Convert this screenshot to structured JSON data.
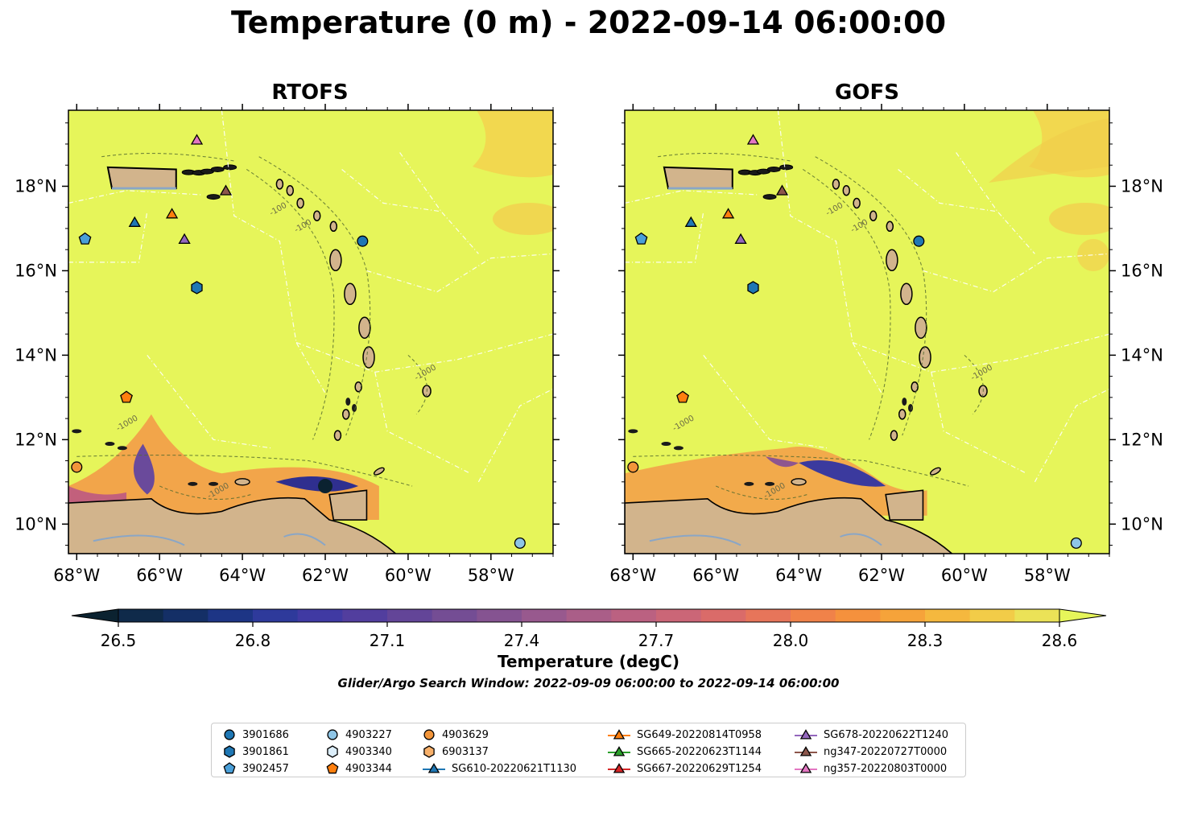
{
  "title": "Temperature (0 m) - 2022-09-14 06:00:00",
  "panels": [
    {
      "title": "RTOFS",
      "y_labels_side": "left"
    },
    {
      "title": "GOFS",
      "y_labels_side": "right"
    }
  ],
  "map": {
    "lon_range": [
      -68.2,
      -56.5
    ],
    "lat_range": [
      9.3,
      19.8
    ],
    "x_ticks": [
      "68°W",
      "66°W",
      "64°W",
      "62°W",
      "60°W",
      "58°W"
    ],
    "x_tick_values": [
      -68,
      -66,
      -64,
      -62,
      -60,
      -58
    ],
    "y_ticks": [
      "18°N",
      "16°N",
      "14°N",
      "12°N",
      "10°N"
    ],
    "y_tick_values": [
      18,
      16,
      14,
      12,
      10
    ],
    "contour_labels": [
      "-100",
      "-1000"
    ],
    "colors": {
      "ocean": "#e6f55a",
      "land": "#d2b48c",
      "warm": "#f5b53a",
      "cool": "#3f3ba0"
    }
  },
  "colorbar": {
    "label": "Temperature (degC)",
    "ticks": [
      "26.5",
      "26.8",
      "27.1",
      "27.4",
      "27.7",
      "28.0",
      "28.3",
      "28.6"
    ],
    "range": [
      26.5,
      28.6
    ],
    "extend": "both",
    "colors": [
      "#0b2230",
      "#0f2a4a",
      "#142f66",
      "#1d3585",
      "#2e3a9b",
      "#403aa3",
      "#523e9e",
      "#634598",
      "#744d94",
      "#855391",
      "#98598e",
      "#aa5e88",
      "#bb6181",
      "#cb6677",
      "#da6b69",
      "#e7755a",
      "#f08249",
      "#f5913d",
      "#f6a33a",
      "#f5b83e",
      "#f2cc48",
      "#ebe257",
      "#e6f55a"
    ]
  },
  "search_window": "Glider/Argo Search Window: 2022-09-09 06:00:00 to 2022-09-14 06:00:00",
  "markers": [
    {
      "shape": "circle",
      "color": "#1f77b4",
      "lon": -61.1,
      "lat": 16.7
    },
    {
      "shape": "hexagon",
      "color": "#1f77b4",
      "lon": -65.1,
      "lat": 15.6
    },
    {
      "shape": "pentagon",
      "color": "#4a9fd8",
      "lon": -67.8,
      "lat": 16.75
    },
    {
      "shape": "circle",
      "color": "#8ec5e6",
      "lon": -57.3,
      "lat": 9.55
    },
    {
      "shape": "pentagon",
      "color": "#ff7f0e",
      "lon": -66.8,
      "lat": 13.0
    },
    {
      "shape": "circle",
      "color": "#f2953a",
      "lon": -68.0,
      "lat": 11.35
    },
    {
      "shape": "triangle",
      "color": "#1f77b4",
      "lon": -66.6,
      "lat": 17.15
    },
    {
      "shape": "triangle",
      "color": "#ff7f0e",
      "lon": -65.7,
      "lat": 17.35
    },
    {
      "shape": "triangle",
      "color": "#9467bd",
      "lon": -65.4,
      "lat": 16.75
    },
    {
      "shape": "triangle",
      "color": "#8c564b",
      "lon": -64.4,
      "lat": 17.9
    },
    {
      "shape": "triangle",
      "color": "#e377c2",
      "lon": -65.1,
      "lat": 19.1
    }
  ],
  "legend": [
    {
      "label": "3901686",
      "shape": "circle",
      "color": "#1f77b4",
      "line": false
    },
    {
      "label": "3901861",
      "shape": "hexagon",
      "color": "#1f77b4",
      "line": false
    },
    {
      "label": "3902457",
      "shape": "pentagon",
      "color": "#4a9fd8",
      "line": false
    },
    {
      "label": "4903227",
      "shape": "circle",
      "color": "#8ec5e6",
      "line": false
    },
    {
      "label": "4903340",
      "shape": "hexagon",
      "color": "#dceefa",
      "line": false
    },
    {
      "label": "4903344",
      "shape": "pentagon",
      "color": "#ff7f0e",
      "line": false
    },
    {
      "label": "4903629",
      "shape": "circle",
      "color": "#f2953a",
      "line": false
    },
    {
      "label": "6903137",
      "shape": "hexagon",
      "color": "#f7b06a",
      "line": false
    },
    {
      "label": "SG610-20220621T1130",
      "shape": "triangle",
      "color": "#1f77b4",
      "line": true
    },
    {
      "label": "SG649-20220814T0958",
      "shape": "triangle",
      "color": "#ff7f0e",
      "line": true
    },
    {
      "label": "SG665-20220623T1144",
      "shape": "triangle",
      "color": "#2ca02c",
      "line": true
    },
    {
      "label": "SG667-20220629T1254",
      "shape": "triangle",
      "color": "#d62728",
      "line": true
    },
    {
      "label": "SG678-20220622T1240",
      "shape": "triangle",
      "color": "#9467bd",
      "line": true
    },
    {
      "label": "ng347-20220727T0000",
      "shape": "triangle",
      "color": "#8c564b",
      "line": true
    },
    {
      "label": "ng357-20220803T0000",
      "shape": "triangle",
      "color": "#e377c2",
      "line": true
    }
  ]
}
